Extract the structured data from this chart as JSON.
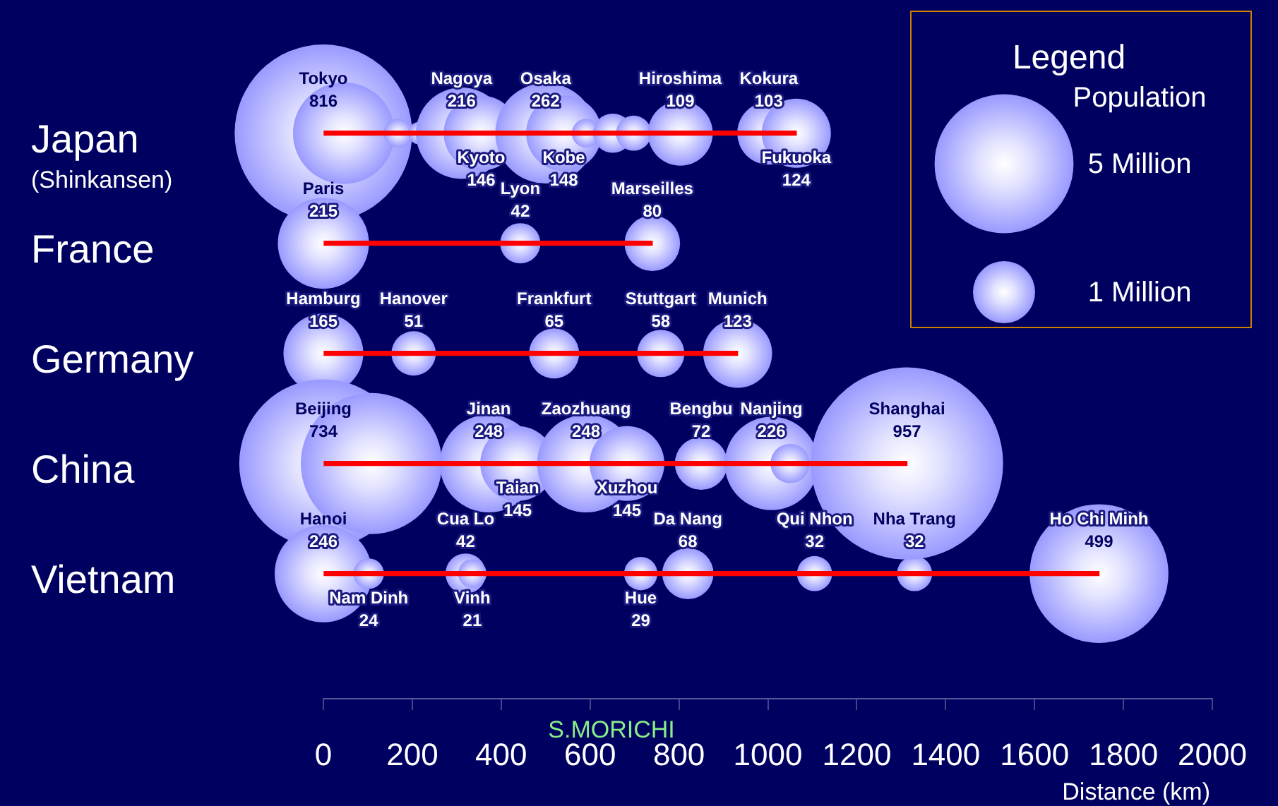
{
  "chart_data": {
    "type": "bubble",
    "orientation": "horizontal",
    "xlabel": "Distance (km)",
    "legend_title": "Legend",
    "annotations": [
      "Population",
      "S.MORICHI"
    ],
    "size_legend": [
      {
        "value": 500,
        "label": "5 Million"
      },
      {
        "value": 100,
        "label": "1 Million"
      }
    ],
    "xlim": [
      0,
      2000
    ],
    "xticks": [
      0,
      200,
      400,
      600,
      800,
      1000,
      1200,
      1400,
      1600,
      1800,
      2000
    ],
    "categories": [
      "Japan\n(Shinkansen)",
      "France",
      "Germany",
      "China",
      "Vietnam"
    ],
    "series": [
      {
        "type": "bar",
        "color": "#ff0000",
        "values": [
          1064,
          740,
          932,
          1313,
          1745
        ]
      },
      {
        "color": "#9999ff",
        "values": [
          0,
          0,
          0,
          0,
          0
        ],
        "sizes": [
          816,
          215,
          165,
          734,
          246
        ],
        "value_labels": [
          "Tokyo\n816",
          "Paris\n215",
          "Hamburg\n165",
          "Beijing\n734",
          "Hanoi\n246"
        ]
      },
      {
        "color": "#9999ff",
        "values": [
          46,
          443,
          203,
          108,
          102
        ],
        "sizes": [
          268,
          42,
          51,
          516,
          24
        ],
        "value_labels": [
          null,
          "Lyon\n42",
          "Hanover\n51",
          null,
          "Nam Dinh\n24"
        ]
      },
      {
        "color": "#9999ff",
        "values": [
          168,
          740,
          519,
          372,
          320
        ],
        "sizes": [
          21,
          80,
          65,
          248,
          42
        ],
        "value_labels": [
          null,
          "Marseilles\n80",
          "Frankfurt\n65",
          "Jinan\n248",
          "Cua Lo\n42"
        ]
      },
      {
        "color": "#9999ff",
        "values": [
          216,
          null,
          759,
          437,
          335
        ],
        "sizes": [
          13,
          null,
          58,
          145,
          21
        ],
        "value_labels": [
          null,
          null,
          "Stuttgart\n58",
          "Taian\n145",
          "Vinh\n21"
        ]
      },
      {
        "color": "#9999ff",
        "values": [
          311,
          null,
          932,
          591,
          714
        ],
        "sizes": [
          216,
          null,
          123,
          248,
          29
        ],
        "value_labels": [
          "Nagoya\n216",
          null,
          "Munich\n123",
          "Zaozhuang\n248",
          "Hue\n29"
        ]
      },
      {
        "color": "#9999ff",
        "values": [
          355,
          null,
          null,
          683,
          820
        ],
        "sizes": [
          146,
          null,
          null,
          145,
          68
        ],
        "value_labels": [
          "Kyoto\n146",
          null,
          null,
          "Xuzhou\n145",
          "Da Nang\n68"
        ]
      },
      {
        "color": "#9999ff",
        "values": [
          500,
          null,
          null,
          850,
          1105
        ],
        "sizes": [
          262,
          null,
          null,
          72,
          32
        ],
        "value_labels": [
          "Osaka\n262",
          null,
          null,
          "Bengbu\n72",
          "Qui Nhon\n32"
        ]
      },
      {
        "color": "#9999ff",
        "values": [
          541,
          null,
          null,
          1008,
          1330
        ],
        "sizes": [
          148,
          null,
          null,
          226,
          32
        ],
        "value_labels": [
          "Kobe\n148",
          null,
          null,
          "Nanjing\n226",
          "Nha Trang\n32"
        ]
      },
      {
        "color": "#9999ff",
        "values": [
          591,
          null,
          null,
          1050,
          1745
        ],
        "sizes": [
          21,
          null,
          null,
          40,
          499
        ],
        "value_labels": [
          null,
          null,
          null,
          null,
          "Ho Chi Minh\n499"
        ]
      },
      {
        "color": "#9999ff",
        "values": [
          651,
          null,
          null,
          1313,
          null
        ],
        "sizes": [
          40,
          null,
          null,
          957,
          null
        ],
        "value_labels": [
          null,
          null,
          null,
          "Shanghai\n957",
          null
        ]
      },
      {
        "color": "#9999ff",
        "values": [
          698,
          null,
          null,
          null,
          null
        ],
        "sizes": [
          32,
          null,
          null,
          null,
          null
        ],
        "value_labels": [
          null,
          null,
          null,
          null,
          null
        ]
      },
      {
        "color": "#9999ff",
        "values": [
          803,
          null,
          null,
          null,
          null
        ],
        "sizes": [
          109,
          null,
          null,
          null,
          null
        ],
        "value_labels": [
          "Hiroshima\n109",
          null,
          null,
          null,
          null
        ]
      },
      {
        "color": "#9999ff",
        "values": [
          1002,
          null,
          null,
          null,
          null
        ],
        "sizes": [
          103,
          null,
          null,
          null,
          null
        ],
        "value_labels": [
          "Kokura\n103",
          null,
          null,
          null,
          null
        ]
      },
      {
        "color": "#9999ff",
        "values": [
          1064,
          null,
          null,
          null,
          null
        ],
        "sizes": [
          124,
          null,
          null,
          null,
          null
        ],
        "value_labels": [
          "Fukuoka\n124",
          null,
          null,
          null,
          null
        ]
      }
    ]
  }
}
